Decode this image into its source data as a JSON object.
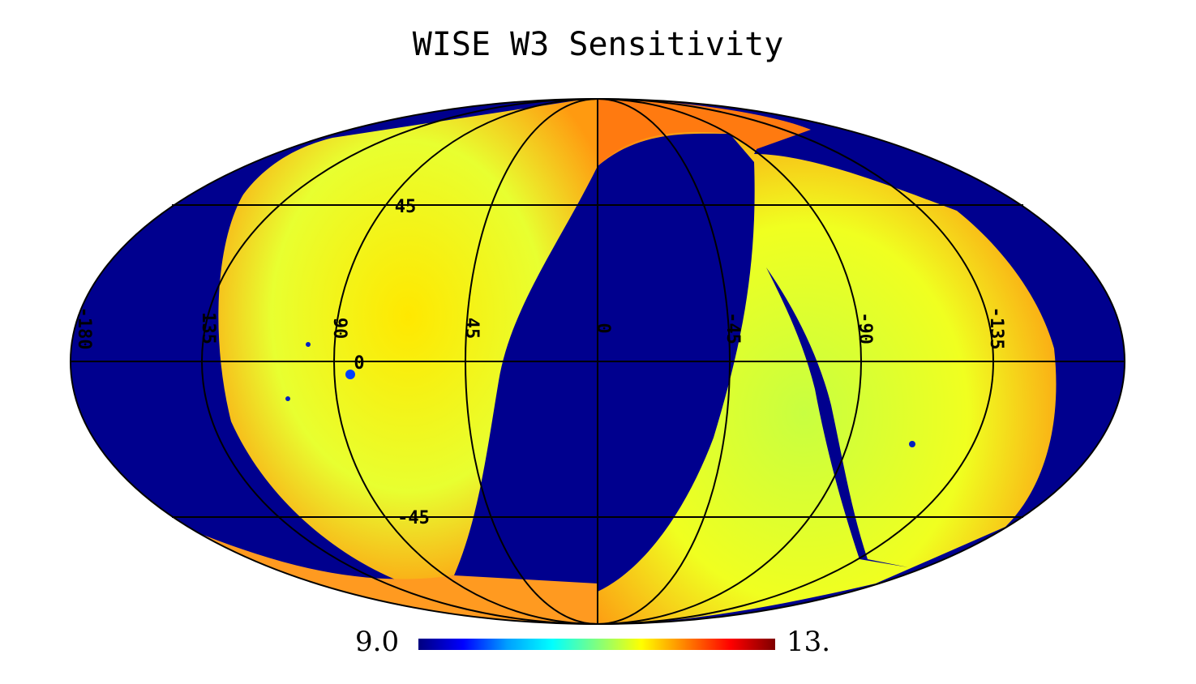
{
  "title": "WISE W3 Sensitivity",
  "colorbar": {
    "min_label": "9.0",
    "max_label": "13.",
    "colors": [
      "#00007f",
      "#0000ff",
      "#00a0ff",
      "#00ffff",
      "#7fff7f",
      "#ffff00",
      "#ff8000",
      "#ff0000",
      "#7f0000"
    ]
  },
  "graticule": {
    "longitude_labels": [
      "-180",
      "135",
      "90",
      "45",
      "0",
      "-45",
      "-90",
      "-135"
    ],
    "latitude_labels": [
      "45",
      "0",
      "-45"
    ]
  },
  "colors": {
    "no_coverage": "#00008e",
    "low_sensitivity": "#ffe400",
    "mid_sensitivity": "#c8ff40",
    "high_sensitivity": "#ff8a10",
    "grid": "#000000"
  }
}
